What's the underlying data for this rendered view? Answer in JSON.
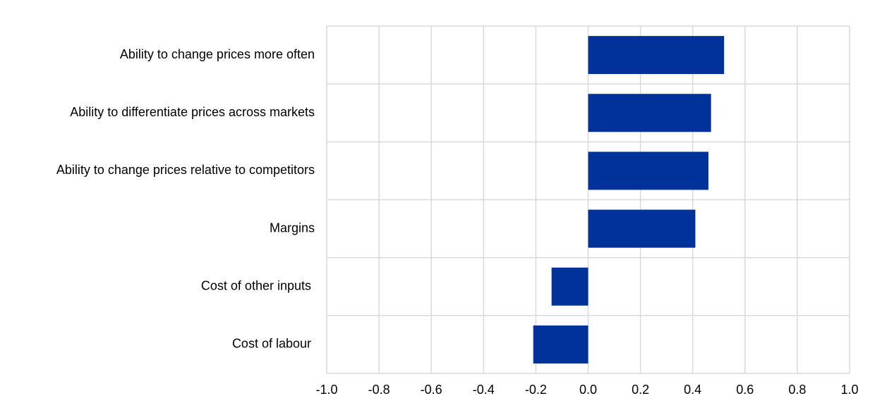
{
  "chart_data": {
    "type": "hbar",
    "categories": [
      "Ability to change prices more often",
      "Ability to differentiate prices across markets",
      "Ability to change prices relative to competitors",
      "Margins",
      "Cost of other inputs ",
      "Cost of labour "
    ],
    "values": [
      0.52,
      0.47,
      0.46,
      0.41,
      -0.14,
      -0.21
    ],
    "color": "#003299",
    "xlim": [
      -1.0,
      1.0
    ],
    "xticks": [
      {
        "value": -1.0,
        "label": "-1.0"
      },
      -0.8,
      -0.6,
      -0.4,
      -0.2,
      {
        "value": 0,
        "label": "0.0"
      },
      0.2,
      0.4,
      0.6,
      0.8,
      {
        "value": 1.0,
        "label": "1.0"
      }
    ],
    "grid": true
  }
}
